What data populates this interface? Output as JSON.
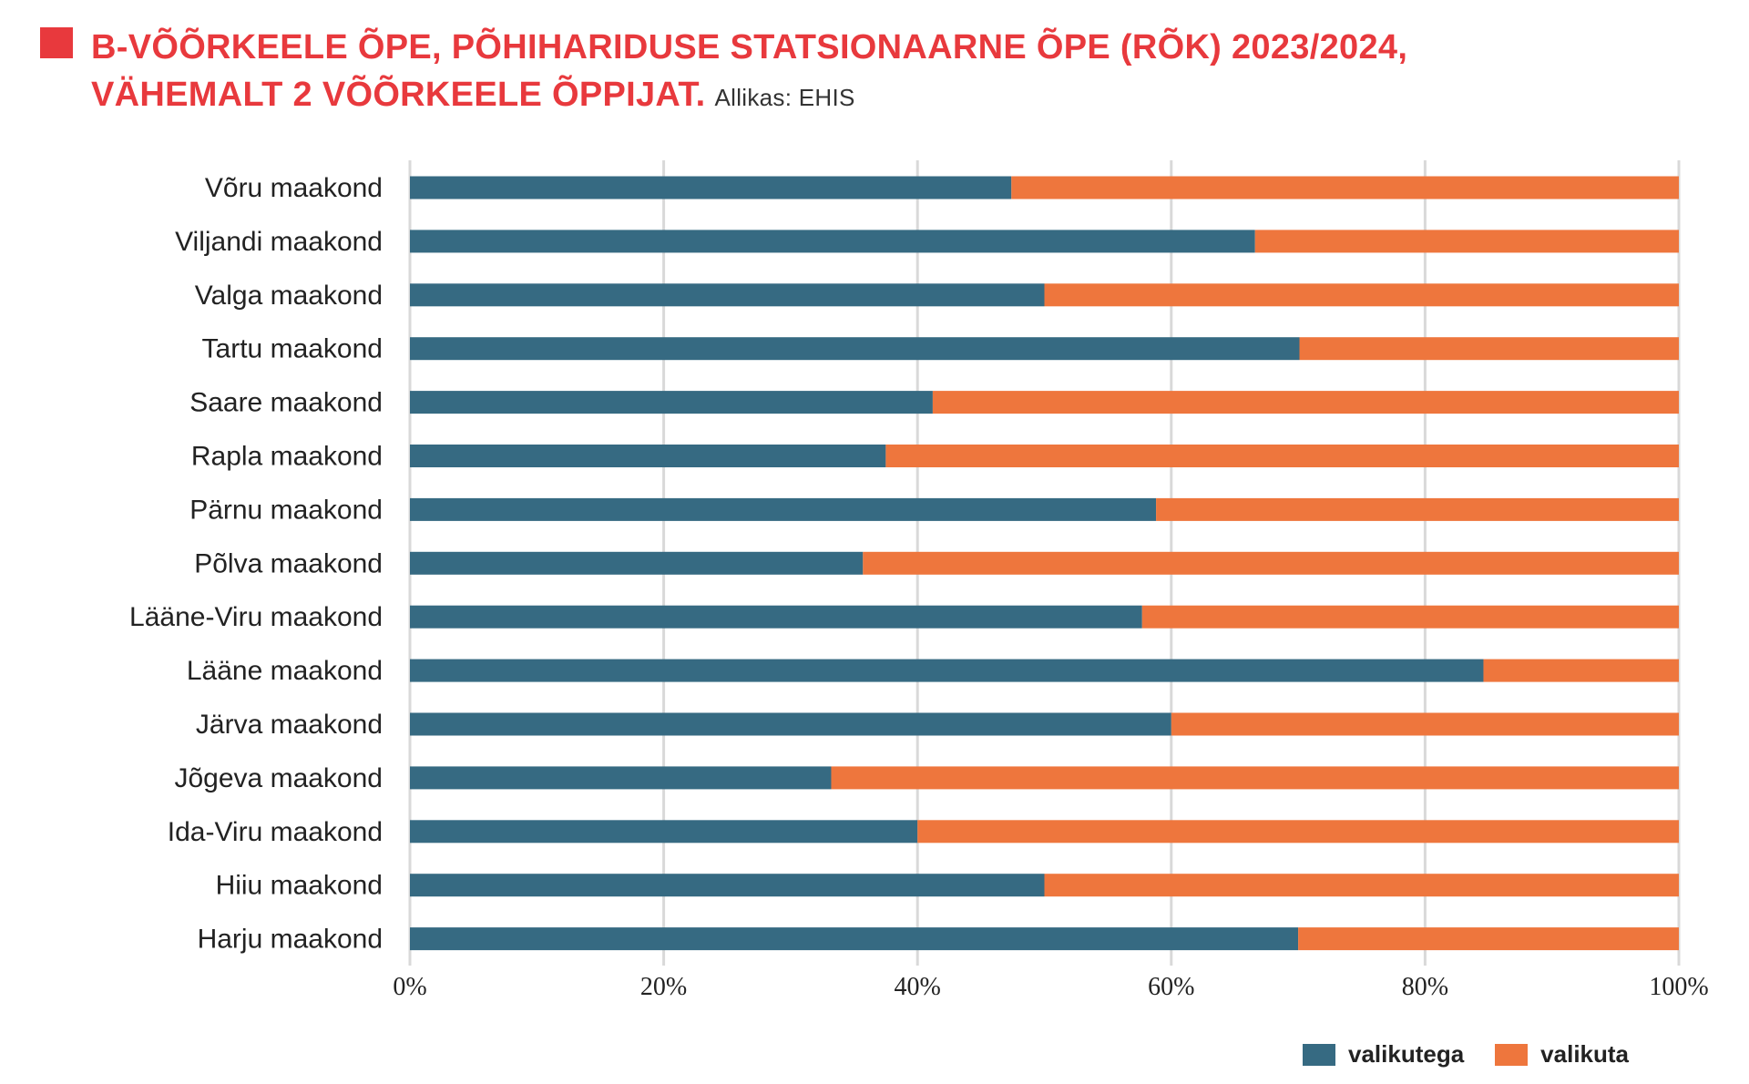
{
  "title_line1": "B-VÕÕRKEELE ÕPE, PÕHIHARIDUSE STATSIONAARNE ÕPE (RÕK) 2023/2024,",
  "title_line2": "VÄHEMALT 2 VÕÕRKEELE ÕPPIJAT.",
  "source": "Allikas: EHIS",
  "colors": {
    "title": "#e8393d",
    "valikutega": "#366a82",
    "valikuta": "#ee763d",
    "grid": "#d9d9d9"
  },
  "chart_data": {
    "type": "bar",
    "orientation": "horizontal",
    "stacked": "percent",
    "categories": [
      "Võru maakond",
      "Viljandi maakond",
      "Valga maakond",
      "Tartu maakond",
      "Saare maakond",
      "Rapla maakond",
      "Pärnu maakond",
      "Põlva maakond",
      "Lääne-Viru maakond",
      "Lääne maakond",
      "Järva maakond",
      "Jõgeva maakond",
      "Ida-Viru maakond",
      "Hiiu maakond",
      "Harju maakond"
    ],
    "series": [
      {
        "name": "valikutega",
        "values": [
          47.4,
          66.6,
          50,
          70.1,
          41.2,
          37.5,
          58.8,
          35.7,
          57.7,
          84.6,
          60,
          33.2,
          40,
          50,
          70
        ]
      },
      {
        "name": "valikuta",
        "values": [
          52.6,
          33.4,
          50,
          29.9,
          58.8,
          62.5,
          41.2,
          64.3,
          42.3,
          15.4,
          40,
          66.8,
          60,
          50,
          30
        ]
      }
    ],
    "xlim": [
      0,
      100
    ],
    "xticks": [
      "0%",
      "20%",
      "40%",
      "60%",
      "80%",
      "100%"
    ],
    "grid": true,
    "legend": "bottom-right"
  }
}
